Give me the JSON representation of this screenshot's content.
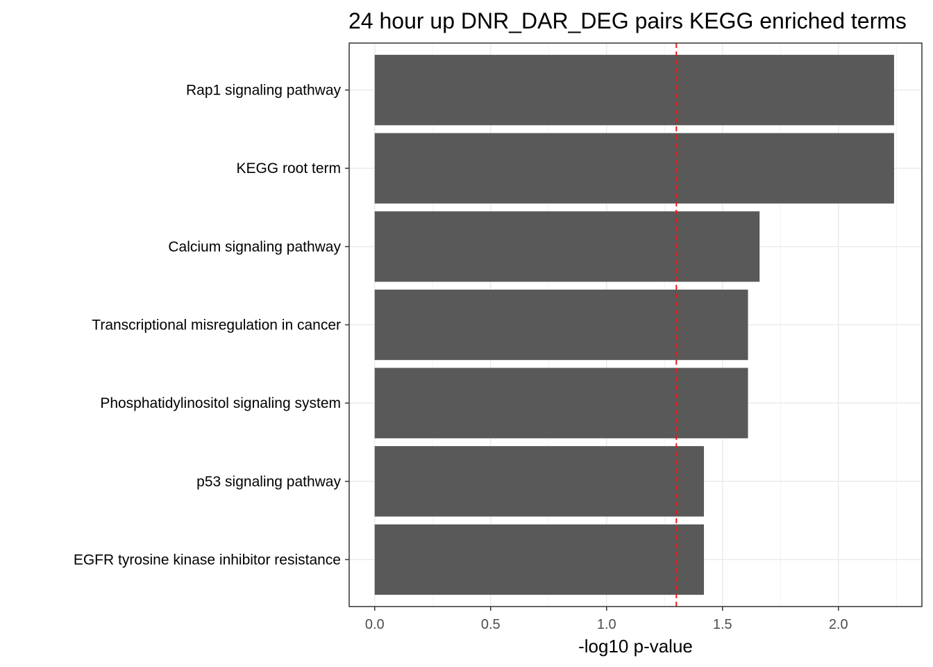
{
  "chart_data": {
    "type": "bar",
    "orientation": "horizontal",
    "title": "24 hour up DNR_DAR_DEG pairs  KEGG enriched terms",
    "xlabel": "-log10 p-value",
    "ylabel": "",
    "categories": [
      "Rap1 signaling pathway",
      "KEGG root term",
      "Calcium signaling pathway",
      "Transcriptional misregulation in cancer",
      "Phosphatidylinositol signaling system",
      "p53 signaling pathway",
      "EGFR tyrosine kinase inhibitor resistance"
    ],
    "values": [
      2.24,
      2.24,
      1.66,
      1.61,
      1.61,
      1.42,
      1.42
    ],
    "xlim": [
      -0.11,
      2.36
    ],
    "xticks": [
      0.0,
      0.5,
      1.0,
      1.5,
      2.0
    ],
    "xtick_labels": [
      "0.0",
      "0.5",
      "1.0",
      "1.5",
      "2.0"
    ],
    "reference_line": {
      "value": 1.30103,
      "color": "#e41a1c",
      "style": "dashed"
    },
    "bar_color": "#595959",
    "grid": true,
    "legend": "none"
  }
}
